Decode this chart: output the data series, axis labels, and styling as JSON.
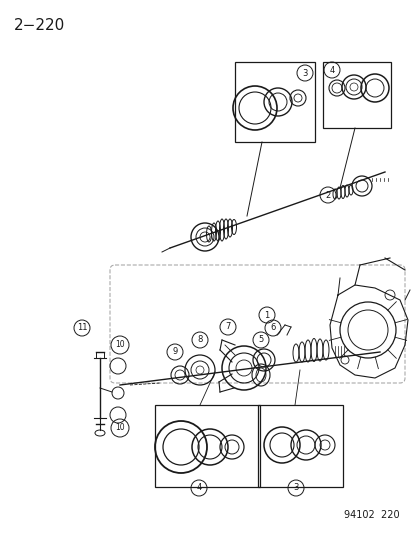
{
  "title": "2−220",
  "footer": "94102  220",
  "bg_color": "#ffffff",
  "title_fontsize": 11,
  "footer_fontsize": 7,
  "fig_width": 4.14,
  "fig_height": 5.33,
  "dpi": 100,
  "line_color": "#1a1a1a",
  "gray_color": "#888888"
}
